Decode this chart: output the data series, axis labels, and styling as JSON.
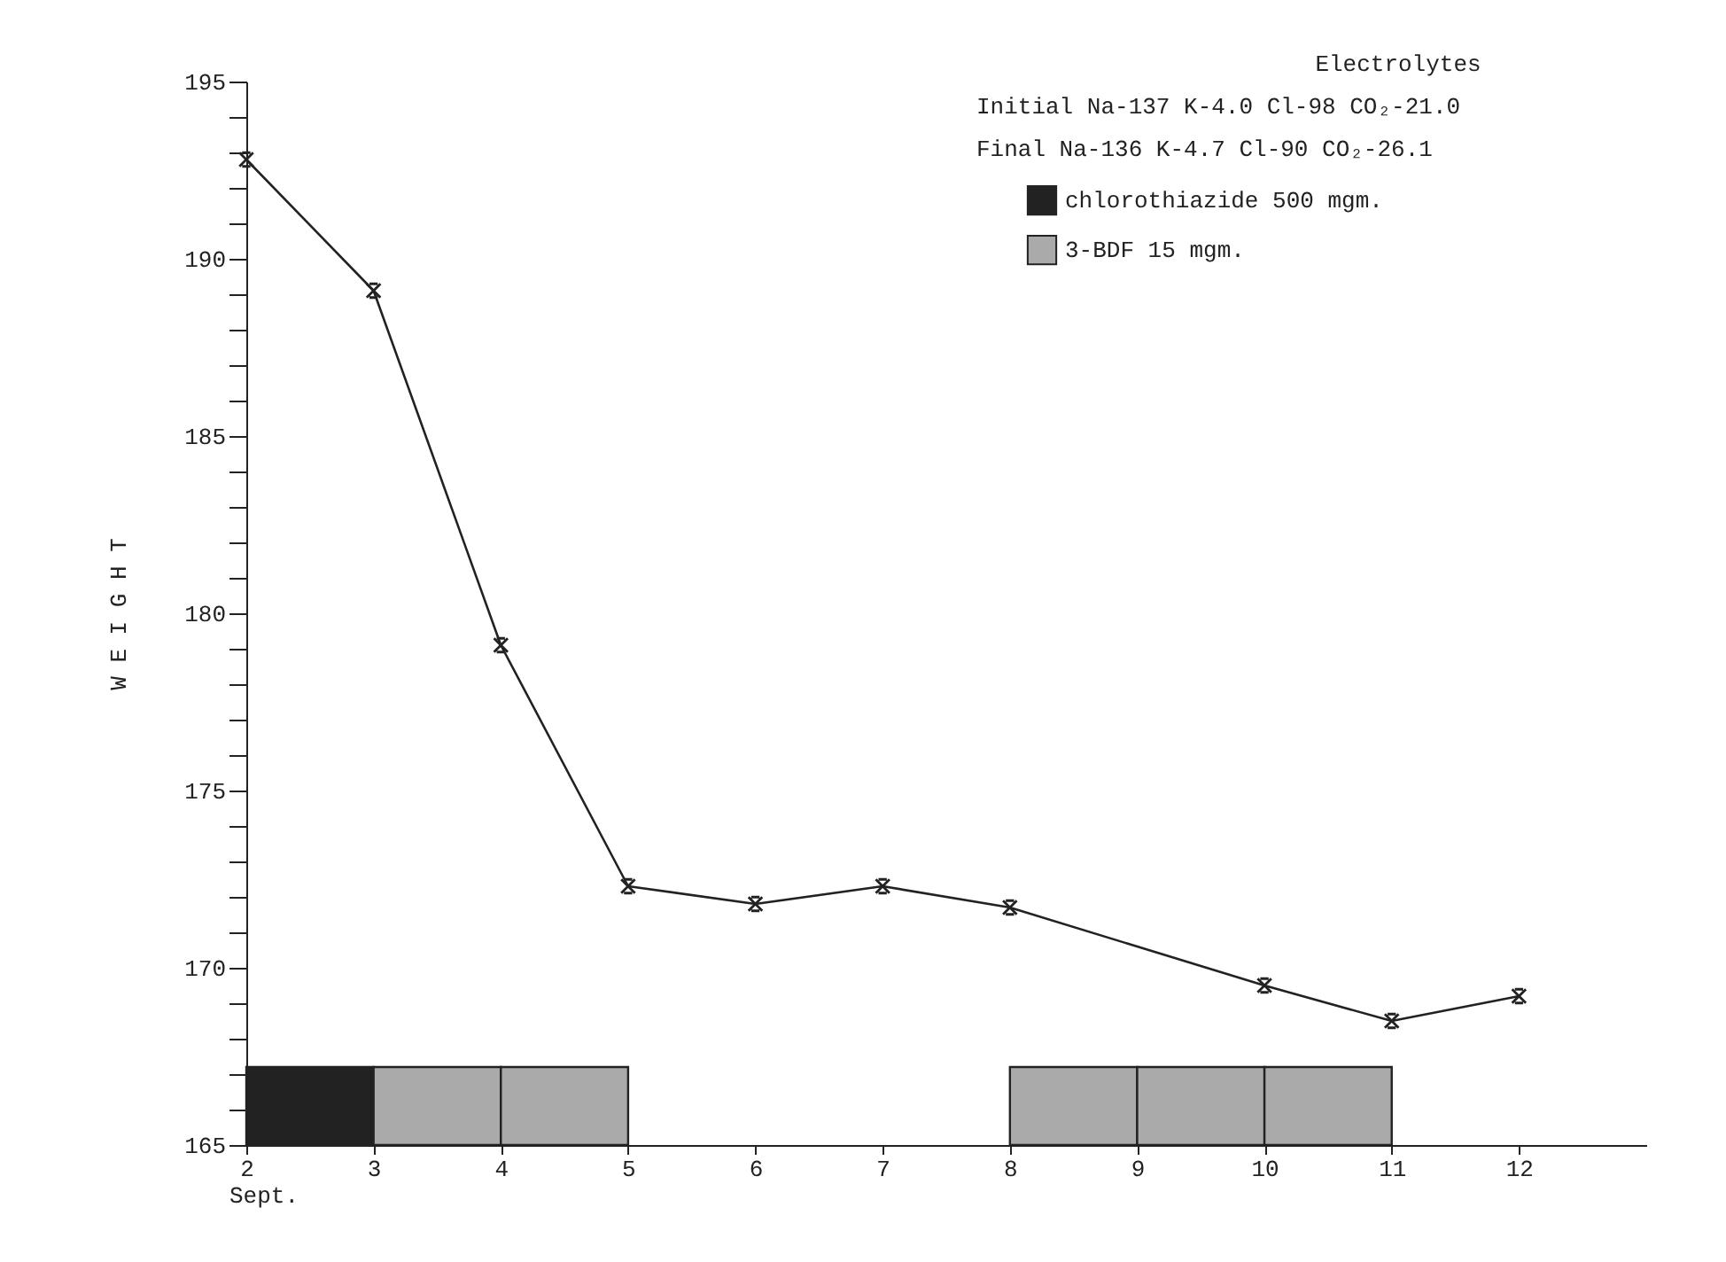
{
  "chart_data": {
    "type": "line",
    "ylabel": "W E I G H T",
    "xlabel": "Sept.",
    "annotations": [
      "Electrolytes",
      "Initial Na-137 K-4.0 Cl-98 CO₂-21.0",
      "Final   Na-136 K-4.7 Cl-90 CO₂-26.1"
    ],
    "series": [
      {
        "color": "#222222",
        "x": [
          2,
          3,
          4,
          5,
          6,
          7,
          8,
          10,
          11,
          12
        ],
        "values": [
          192.8,
          189.1,
          179.1,
          172.3,
          171.8,
          172.3,
          171.7,
          169.5,
          168.5,
          169.2
        ]
      },
      {
        "type": "bar",
        "name": "chlorothiazide 500 mgm.",
        "color": "#222222",
        "x": [
          2.5
        ],
        "values": [
          167.2
        ]
      },
      {
        "type": "bar",
        "name": "3-BDF 15 mgm.",
        "color": "#aaaaaa",
        "x": [
          3.5,
          4.5,
          8.5,
          9.5,
          10.5
        ],
        "values": [
          167.2,
          167.2,
          167.2,
          167.2,
          167.2
        ]
      }
    ],
    "marker": "cross",
    "legend": "top right",
    "xlim": [
      2,
      13
    ],
    "xticks": [
      2,
      3,
      4,
      5,
      6,
      7,
      8,
      9,
      10,
      11,
      12
    ],
    "ylim": [
      165,
      195
    ],
    "yticks": [
      165,
      {
        "value": 166,
        "label": null
      },
      {
        "value": 167,
        "label": null
      },
      {
        "value": 168,
        "label": null
      },
      {
        "value": 169,
        "label": null
      },
      170,
      {
        "value": 171,
        "label": null
      },
      {
        "value": 172,
        "label": null
      },
      {
        "value": 173,
        "label": null
      },
      {
        "value": 174,
        "label": null
      },
      175,
      {
        "value": 176,
        "label": null
      },
      {
        "value": 177,
        "label": null
      },
      {
        "value": 178,
        "label": null
      },
      {
        "value": 179,
        "label": null
      },
      180,
      {
        "value": 181,
        "label": null
      },
      {
        "value": 182,
        "label": null
      },
      {
        "value": 183,
        "label": null
      },
      {
        "value": 184,
        "label": null
      },
      185,
      {
        "value": 186,
        "label": null
      },
      {
        "value": 187,
        "label": null
      },
      {
        "value": 188,
        "label": null
      },
      {
        "value": 189,
        "label": null
      },
      190,
      {
        "value": 191,
        "label": null
      },
      {
        "value": 192,
        "label": null
      },
      {
        "value": 193,
        "label": null
      },
      {
        "value": 194,
        "label": null
      },
      195
    ],
    "grid": false
  }
}
